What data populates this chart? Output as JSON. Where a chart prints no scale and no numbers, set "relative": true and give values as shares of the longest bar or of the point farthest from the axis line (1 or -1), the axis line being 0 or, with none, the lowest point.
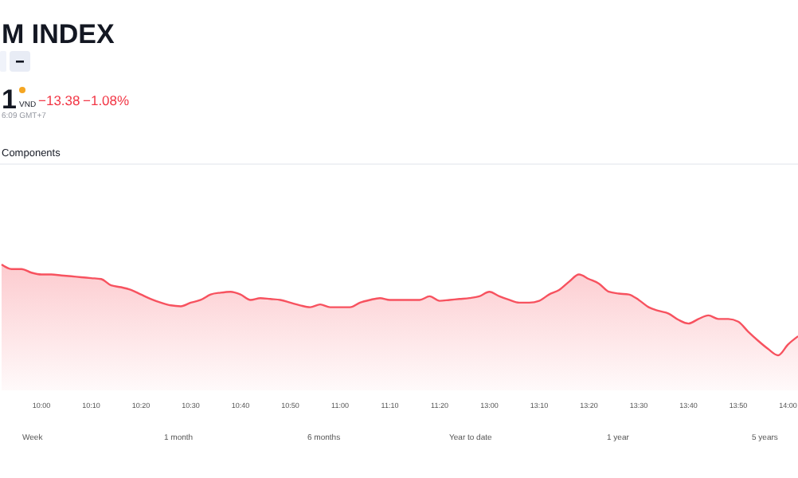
{
  "chart_data": {
    "type": "area",
    "title": "M INDEX",
    "relative": true,
    "color": "#f7525f",
    "categories": [
      null,
      null,
      null,
      null,
      "10:00",
      null,
      null,
      null,
      null,
      "10:10",
      null,
      null,
      null,
      null,
      "10:20",
      null,
      null,
      null,
      null,
      "10:30",
      null,
      null,
      null,
      null,
      "10:40",
      null,
      null,
      null,
      null,
      "10:50",
      null,
      null,
      null,
      null,
      "11:00",
      null,
      null,
      null,
      null,
      "11:10",
      null,
      null,
      null,
      null,
      "11:20",
      null,
      null,
      null,
      null,
      "13:00",
      null,
      null,
      null,
      null,
      "13:10",
      null,
      null,
      null,
      null,
      "13:20",
      null,
      null,
      null,
      null,
      "13:30",
      null,
      null,
      null,
      null,
      "13:40",
      null,
      null,
      null,
      null,
      "13:50",
      null,
      null,
      null,
      null,
      "14:00",
      null
    ],
    "values": [
      1,
      0.95,
      0.95,
      0.91,
      0.89,
      0.89,
      0.88,
      0.87,
      0.86,
      0.85,
      0.84,
      0.77,
      0.75,
      0.72,
      0.67,
      0.62,
      0.58,
      0.55,
      0.54,
      0.58,
      0.61,
      0.67,
      0.69,
      0.7,
      0.67,
      0.61,
      0.63,
      0.62,
      0.61,
      0.58,
      0.55,
      0.53,
      0.56,
      0.53,
      0.53,
      0.53,
      0.58,
      0.61,
      0.63,
      0.61,
      0.61,
      0.61,
      0.61,
      0.65,
      0.6,
      0.61,
      0.62,
      0.63,
      0.65,
      0.7,
      0.65,
      0.61,
      0.58,
      0.58,
      0.6,
      0.67,
      0.72,
      0.81,
      0.89,
      0.84,
      0.79,
      0.7,
      0.68,
      0.67,
      0.61,
      0.53,
      0.49,
      0.46,
      0.39,
      0.35,
      0.4,
      0.44,
      0.4,
      0.4,
      0.37,
      0.26,
      0.16,
      0.07,
      0,
      0.12,
      0.21
    ],
    "annotations": [
      "1",
      "VND",
      "−13.38",
      "−1.08%",
      "6:09 GMT+7",
      "Components",
      "Week",
      "1 month",
      "6 months",
      "Year to date",
      "1 year",
      "5 years"
    ]
  }
}
